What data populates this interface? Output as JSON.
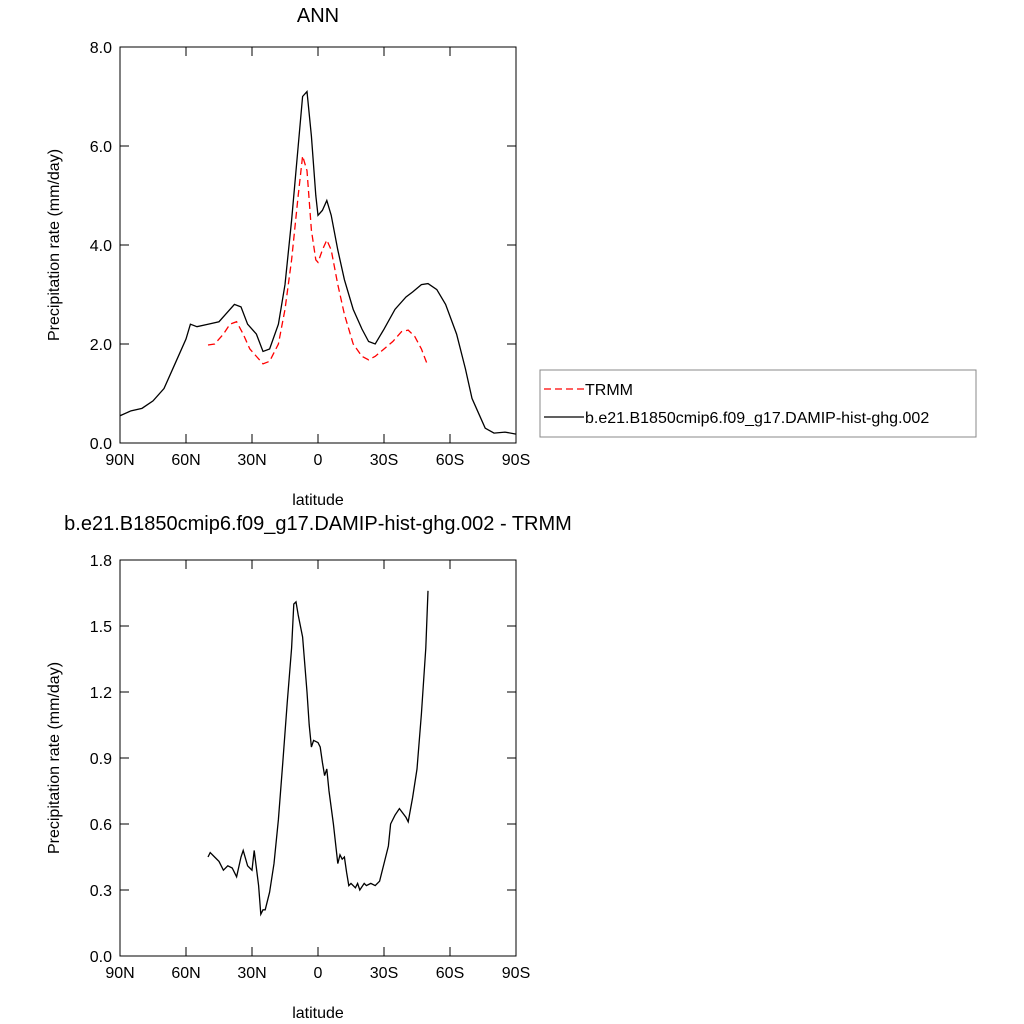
{
  "chart_data": [
    {
      "type": "line",
      "title": "ANN",
      "xlabel": "latitude",
      "ylabel": "Precipitation rate (mm/day)",
      "xlim": [
        90,
        -90
      ],
      "xticks": [
        {
          "value": 90,
          "label": "90N"
        },
        {
          "value": 60,
          "label": "60N"
        },
        {
          "value": 30,
          "label": "30N"
        },
        0,
        {
          "value": -30,
          "label": "30S"
        },
        {
          "value": -60,
          "label": "60S"
        },
        {
          "value": -90,
          "label": "90S"
        }
      ],
      "ylim": [
        0,
        8
      ],
      "yticks": [
        {
          "value": 0,
          "label": "0.0"
        },
        {
          "value": 2,
          "label": "2.0"
        },
        {
          "value": 4,
          "label": "4.0"
        },
        {
          "value": 6,
          "label": "6.0"
        },
        {
          "value": 8,
          "label": "8.0"
        }
      ],
      "legend": "outside-right",
      "series": [
        {
          "name": "TRMM",
          "color": "#ff0000",
          "line_style": "dashed",
          "x": [
            50,
            47,
            43,
            40,
            37,
            34,
            31,
            28,
            25,
            22,
            18,
            15,
            12,
            9,
            7,
            5,
            3,
            1,
            0,
            -2,
            -4,
            -6,
            -9,
            -12,
            -16,
            -20,
            -23,
            -26,
            -30,
            -34,
            -38,
            -41,
            -44,
            -47,
            -50
          ],
          "values": [
            1.98,
            2.0,
            2.2,
            2.4,
            2.45,
            2.2,
            1.9,
            1.75,
            1.6,
            1.65,
            2.0,
            2.7,
            3.7,
            5.0,
            5.8,
            5.5,
            4.3,
            3.7,
            3.65,
            3.9,
            4.1,
            3.9,
            3.2,
            2.6,
            2.0,
            1.75,
            1.68,
            1.75,
            1.9,
            2.05,
            2.25,
            2.28,
            2.15,
            1.9,
            1.55
          ]
        },
        {
          "name": "b.e21.B1850cmip6.f09_g17.DAMIP-hist-ghg.002",
          "color": "#000000",
          "line_style": "solid",
          "x": [
            90,
            85,
            80,
            75,
            70,
            65,
            60,
            58,
            55,
            50,
            45,
            42,
            38,
            35,
            32,
            28,
            25,
            22,
            18,
            15,
            12,
            9,
            7,
            5,
            3,
            1,
            0,
            -2,
            -4,
            -6,
            -9,
            -12,
            -16,
            -20,
            -23,
            -26,
            -30,
            -35,
            -40,
            -43,
            -47,
            -50,
            -54,
            -58,
            -63,
            -67,
            -70,
            -73,
            -76,
            -80,
            -85,
            -90
          ],
          "values": [
            0.55,
            0.65,
            0.7,
            0.85,
            1.1,
            1.6,
            2.1,
            2.4,
            2.35,
            2.4,
            2.45,
            2.6,
            2.8,
            2.75,
            2.4,
            2.2,
            1.85,
            1.9,
            2.4,
            3.2,
            4.5,
            6.0,
            7.0,
            7.1,
            6.2,
            5.0,
            4.6,
            4.7,
            4.9,
            4.6,
            3.9,
            3.3,
            2.7,
            2.3,
            2.05,
            2.0,
            2.3,
            2.7,
            2.95,
            3.05,
            3.2,
            3.22,
            3.1,
            2.8,
            2.2,
            1.5,
            0.9,
            0.6,
            0.3,
            0.2,
            0.22,
            0.18
          ]
        }
      ]
    },
    {
      "type": "line",
      "title": "b.e21.B1850cmip6.f09_g17.DAMIP-hist-ghg.002 - TRMM",
      "xlabel": "latitude",
      "ylabel": "Precipitation rate (mm/day)",
      "xlim": [
        90,
        -90
      ],
      "xticks": [
        {
          "value": 90,
          "label": "90N"
        },
        {
          "value": 60,
          "label": "60N"
        },
        {
          "value": 30,
          "label": "30N"
        },
        0,
        {
          "value": -30,
          "label": "30S"
        },
        {
          "value": -60,
          "label": "60S"
        },
        {
          "value": -90,
          "label": "90S"
        }
      ],
      "ylim": [
        0,
        1.8
      ],
      "yticks": [
        {
          "value": 0,
          "label": "0.0"
        },
        0.3,
        0.6,
        0.9,
        1.2,
        1.5,
        1.8
      ],
      "series": [
        {
          "color": "#000000",
          "line_style": "solid",
          "x": [
            50,
            49,
            47,
            45,
            43,
            41,
            39,
            37,
            35,
            34,
            32,
            31,
            30,
            29,
            28,
            27,
            26,
            25,
            24,
            22,
            20,
            18,
            16,
            14,
            12,
            11,
            10,
            9,
            7,
            5,
            4,
            3,
            2,
            0,
            -1,
            -2,
            -3,
            -4,
            -5,
            -7,
            -9,
            -10,
            -11,
            -12,
            -13,
            -14,
            -15,
            -17,
            -18,
            -19,
            -21,
            -22,
            -24,
            -26,
            -28,
            -30,
            -32,
            -33,
            -35,
            -37,
            -40,
            -41,
            -43,
            -45,
            -47,
            -49,
            -50
          ],
          "values": [
            0.45,
            0.47,
            0.45,
            0.43,
            0.39,
            0.41,
            0.4,
            0.36,
            0.45,
            0.48,
            0.41,
            0.4,
            0.39,
            0.48,
            0.4,
            0.32,
            0.19,
            0.21,
            0.21,
            0.29,
            0.42,
            0.62,
            0.88,
            1.15,
            1.4,
            1.6,
            1.61,
            1.55,
            1.45,
            1.2,
            1.05,
            0.95,
            0.98,
            0.97,
            0.95,
            0.88,
            0.82,
            0.85,
            0.75,
            0.6,
            0.42,
            0.46,
            0.44,
            0.45,
            0.38,
            0.32,
            0.33,
            0.31,
            0.33,
            0.3,
            0.33,
            0.32,
            0.33,
            0.32,
            0.34,
            0.42,
            0.5,
            0.6,
            0.64,
            0.67,
            0.63,
            0.61,
            0.72,
            0.85,
            1.1,
            1.4,
            1.66
          ]
        }
      ]
    }
  ]
}
